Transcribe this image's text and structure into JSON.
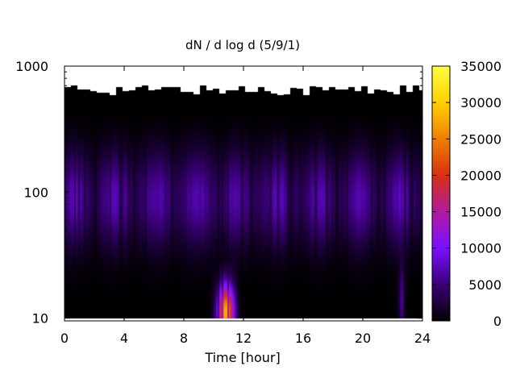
{
  "chart_data": {
    "type": "heatmap",
    "title": "dN / d log d (5/9/1)",
    "xlabel": "Time [hour]",
    "ylabel": "",
    "xlim": [
      0,
      24
    ],
    "ylim": [
      9.5,
      1000
    ],
    "y_scale": "log",
    "x_ticks": [
      0,
      4,
      8,
      12,
      16,
      20,
      24
    ],
    "x_tick_labels": [
      "0",
      "4",
      "8",
      "12",
      "16",
      "20",
      "24"
    ],
    "y_ticks": [
      10,
      100,
      1000
    ],
    "y_tick_labels": [
      "10",
      "100",
      "1000"
    ],
    "colorbar": {
      "range": [
        0,
        35000
      ],
      "ticks": [
        0,
        5000,
        10000,
        15000,
        20000,
        25000,
        30000,
        35000
      ],
      "tick_labels": [
        "0",
        "5000",
        "10000",
        "15000",
        "20000",
        "25000",
        "30000",
        "35000"
      ],
      "colormap": [
        "#000000",
        "#3a0078",
        "#7a10ff",
        "#b01aa0",
        "#d83010",
        "#f08000",
        "#ffd000",
        "#ffff40"
      ]
    },
    "grid": false,
    "legend": "colorbar-right",
    "hotspot": {
      "x": 10.8,
      "y_range": [
        10,
        25
      ],
      "max_value": 28000
    },
    "background_band": {
      "y_range": [
        15,
        400
      ],
      "typical_value": 7000
    },
    "no_data_above_diameter": 600
  }
}
